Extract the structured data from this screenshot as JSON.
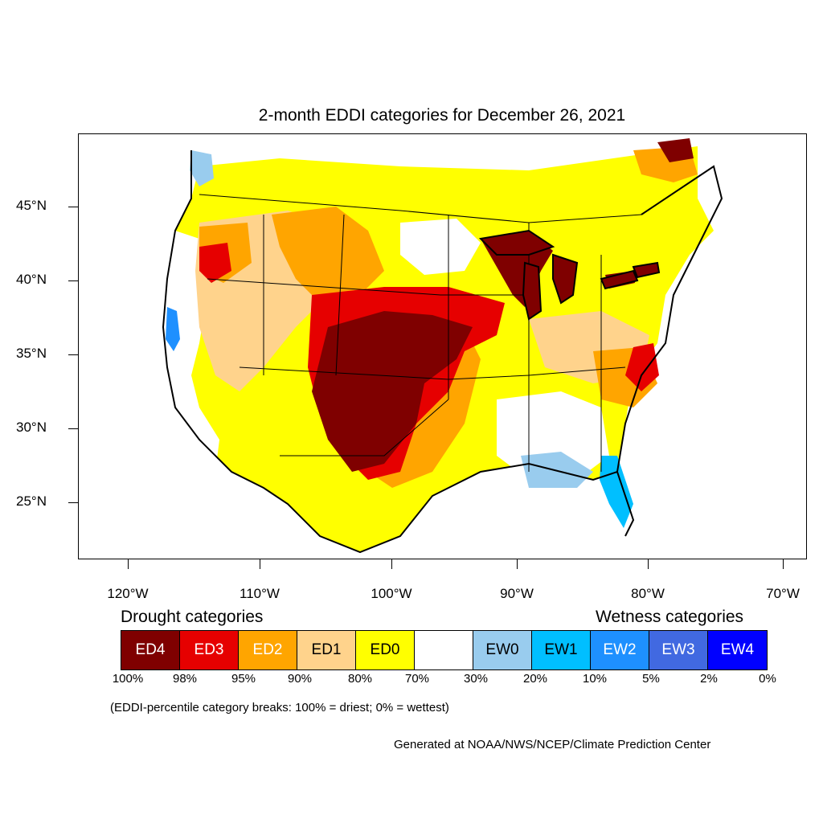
{
  "title": "2-month EDDI categories for December 26, 2021",
  "latitude_labels": [
    "45°N",
    "40°N",
    "35°N",
    "30°N",
    "25°N"
  ],
  "longitude_labels": [
    "120°W",
    "110°W",
    "100°W",
    "90°W",
    "80°W",
    "70°W"
  ],
  "legend": {
    "drought_heading": "Drought categories",
    "wetness_heading": "Wetness categories",
    "categories": [
      {
        "label": "ED4",
        "color": "#7f0000",
        "text_color": "#ffffff"
      },
      {
        "label": "ED3",
        "color": "#e60000",
        "text_color": "#ffffff"
      },
      {
        "label": "ED2",
        "color": "#ffa500",
        "text_color": "#ffffff"
      },
      {
        "label": "ED1",
        "color": "#ffd38c",
        "text_color": "#000000"
      },
      {
        "label": "ED0",
        "color": "#ffff00",
        "text_color": "#000000"
      },
      {
        "label": "",
        "color": "#ffffff",
        "text_color": "#000000"
      },
      {
        "label": "EW0",
        "color": "#99ccee",
        "text_color": "#000000"
      },
      {
        "label": "EW1",
        "color": "#00bfff",
        "text_color": "#000000"
      },
      {
        "label": "EW2",
        "color": "#1e90ff",
        "text_color": "#ffffff"
      },
      {
        "label": "EW3",
        "color": "#4169e1",
        "text_color": "#ffffff"
      },
      {
        "label": "EW4",
        "color": "#0000ff",
        "text_color": "#ffffff"
      }
    ],
    "percentile_breaks": [
      "100%",
      "98%",
      "95%",
      "90%",
      "80%",
      "70%",
      "30%",
      "20%",
      "10%",
      "5%",
      "2%",
      "0%"
    ]
  },
  "note": "(EDDI-percentile category breaks: 100% = driest; 0% = wettest)",
  "credit": "Generated at NOAA/NWS/NCEP/Climate Prediction Center"
}
